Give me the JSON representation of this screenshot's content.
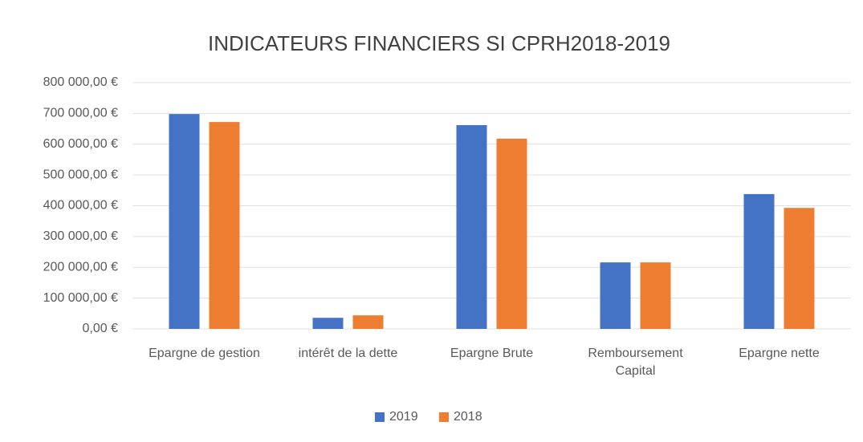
{
  "chart_data": {
    "type": "bar",
    "title": "INDICATEURS FINANCIERS SI CPRH2018-2019",
    "categories": [
      "Epargne de gestion",
      "intérêt de la dette",
      "Epargne Brute",
      "Remboursement Capital",
      "Epargne nette"
    ],
    "series": [
      {
        "name": "2019",
        "color": "#4472c4",
        "values": [
          698000,
          36000,
          662000,
          216000,
          438000
        ]
      },
      {
        "name": "2018",
        "color": "#ed7d31",
        "values": [
          672000,
          44000,
          618000,
          216000,
          393000
        ]
      }
    ],
    "ylim": [
      0,
      800000
    ],
    "yticks": [
      {
        "value": 0,
        "label": "0,00 €"
      },
      {
        "value": 100000,
        "label": "100 000,00 €"
      },
      {
        "value": 200000,
        "label": "200 000,00 €"
      },
      {
        "value": 300000,
        "label": "300 000,00 €"
      },
      {
        "value": 400000,
        "label": "400 000,00 €"
      },
      {
        "value": 500000,
        "label": "500 000,00 €"
      },
      {
        "value": 600000,
        "label": "600 000,00 €"
      },
      {
        "value": 700000,
        "label": "700 000,00 €"
      },
      {
        "value": 800000,
        "label": "800 000,00 €"
      }
    ],
    "grid": true,
    "legend": "bottom"
  }
}
